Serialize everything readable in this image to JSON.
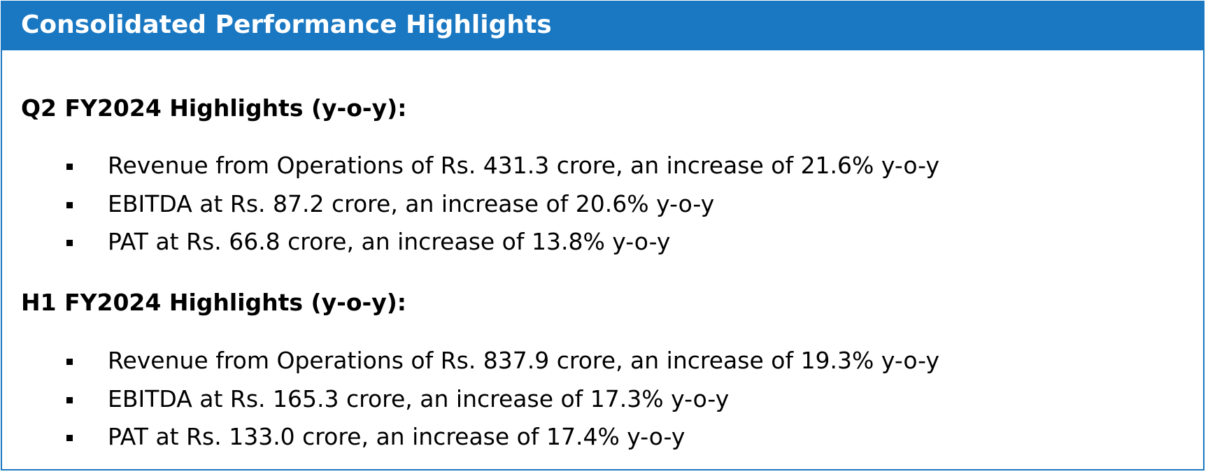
{
  "header": {
    "title": "Consolidated Performance Highlights"
  },
  "sections": [
    {
      "title": "Q2 FY2024 Highlights (y-o-y):",
      "bullets": [
        "Revenue from Operations of Rs. 431.3 crore, an increase of 21.6% y-o-y",
        "EBITDA at Rs. 87.2 crore, an increase of 20.6% y-o-y",
        "PAT at Rs. 66.8 crore, an increase of 13.8% y-o-y"
      ]
    },
    {
      "title": "H1 FY2024 Highlights (y-o-y):",
      "bullets": [
        "Revenue from Operations of Rs. 837.9 crore, an increase of 19.3% y-o-y",
        "EBITDA at Rs. 165.3 crore, an increase of 17.3% y-o-y",
        "PAT at Rs. 133.0 crore, an increase of 17.4% y-o-y"
      ]
    }
  ],
  "colors": {
    "header_background": "#1a78c2",
    "border": "#1a78c2",
    "header_text": "#ffffff",
    "body_text": "#000000"
  }
}
